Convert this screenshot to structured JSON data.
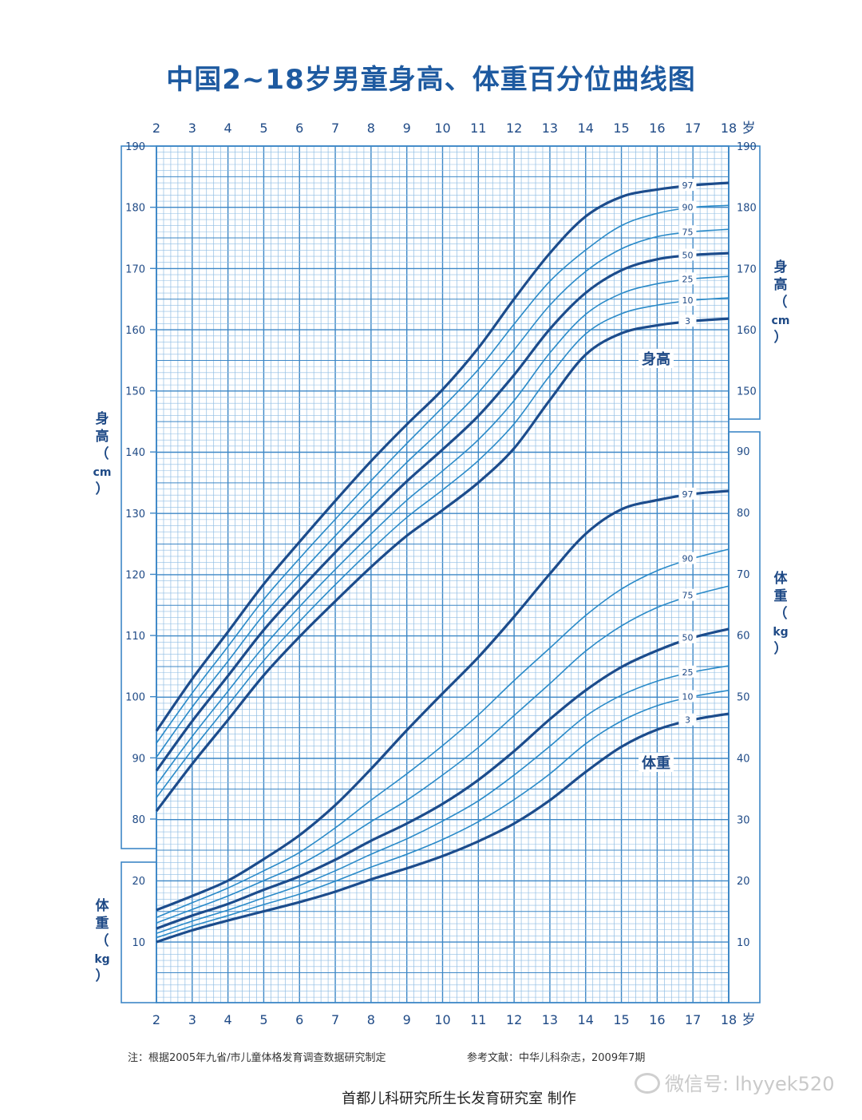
{
  "title": "中国2~18岁男童身高、体重百分位曲线图",
  "footer": {
    "note": "注：根据2005年九省/市儿童体格发育调查数据研究制定",
    "reference": "参考文献：中华儿科杂志，2009年7期",
    "maker": "首都儿科研究所生长发育研究室  制作",
    "watermark": "微信号: lhyyek520"
  },
  "colors": {
    "grid": "#3d87c6",
    "grid_minor": "#8fbde3",
    "heavy_curve": "#1c4c8c",
    "light_curve": "#2a8ac8",
    "text": "#1f4a86"
  },
  "chart_data": {
    "type": "line",
    "x_ticks": [
      2,
      3,
      4,
      5,
      6,
      7,
      8,
      9,
      10,
      11,
      12,
      13,
      14,
      15,
      16,
      17,
      18
    ],
    "x_unit": "岁",
    "xlim": [
      2,
      18
    ],
    "grid": true,
    "height": {
      "label": "身高",
      "axis_label_chars": [
        "身",
        "高",
        "（",
        "cm",
        "）"
      ],
      "ylim": [
        75,
        190
      ],
      "ticks": [
        80,
        90,
        100,
        110,
        120,
        130,
        140,
        150,
        160,
        170,
        180,
        190
      ],
      "right_ticks": [
        150,
        160,
        170,
        180,
        190
      ],
      "x": [
        2,
        3,
        4,
        5,
        6,
        7,
        8,
        9,
        10,
        11,
        12,
        13,
        14,
        15,
        16,
        17,
        18
      ],
      "series": [
        {
          "name": "3",
          "values": [
            81.3,
            89.0,
            96.2,
            103.5,
            109.8,
            115.6,
            121.2,
            126.3,
            130.5,
            135.0,
            140.6,
            148.5,
            155.9,
            159.4,
            160.7,
            161.4,
            161.8
          ]
        },
        {
          "name": "10",
          "values": [
            83.5,
            91.3,
            98.6,
            105.9,
            112.3,
            118.3,
            124.0,
            129.3,
            133.8,
            138.6,
            144.6,
            152.5,
            159.3,
            162.6,
            164.0,
            164.8,
            165.2
          ]
        },
        {
          "name": "25",
          "values": [
            85.6,
            93.5,
            100.9,
            108.2,
            114.7,
            120.8,
            126.6,
            132.1,
            136.9,
            142.0,
            148.4,
            156.2,
            162.5,
            165.9,
            167.5,
            168.3,
            168.7
          ]
        },
        {
          "name": "50",
          "values": [
            87.9,
            96.0,
            103.4,
            110.9,
            117.4,
            123.6,
            129.5,
            135.2,
            140.4,
            145.9,
            152.6,
            160.1,
            166.0,
            169.7,
            171.5,
            172.2,
            172.5
          ]
        },
        {
          "name": "75",
          "values": [
            90.1,
            98.3,
            105.8,
            113.4,
            120.0,
            126.3,
            132.4,
            138.3,
            143.8,
            149.7,
            156.7,
            164.0,
            169.5,
            173.2,
            175.2,
            176.0,
            176.4
          ]
        },
        {
          "name": "90",
          "values": [
            92.4,
            100.6,
            108.2,
            115.9,
            122.6,
            129.0,
            135.3,
            141.4,
            147.3,
            153.5,
            160.9,
            167.9,
            173.0,
            177.0,
            179.0,
            180.0,
            180.3
          ]
        },
        {
          "name": "97",
          "values": [
            94.4,
            102.9,
            110.6,
            118.4,
            125.3,
            132.0,
            138.5,
            144.5,
            150.2,
            157.0,
            165.0,
            172.5,
            178.5,
            181.7,
            182.9,
            183.6,
            184.0
          ]
        }
      ]
    },
    "weight": {
      "label": "体重",
      "axis_label_chars": [
        "体",
        "重",
        "（",
        "kg",
        "）"
      ],
      "ylim": [
        5,
        95
      ],
      "left_ticks": [
        10,
        20
      ],
      "right_ticks": [
        10,
        20,
        30,
        40,
        50,
        60,
        70,
        80,
        90
      ],
      "x": [
        2,
        3,
        4,
        5,
        6,
        7,
        8,
        9,
        10,
        11,
        12,
        13,
        14,
        15,
        16,
        17,
        18
      ],
      "series": [
        {
          "name": "3",
          "values": [
            10.0,
            11.9,
            13.5,
            15.0,
            16.5,
            18.2,
            20.2,
            22.0,
            24.0,
            26.4,
            29.3,
            33.1,
            37.7,
            41.8,
            44.6,
            46.2,
            47.2
          ]
        },
        {
          "name": "10",
          "values": [
            10.7,
            12.6,
            14.3,
            16.1,
            17.8,
            19.9,
            22.2,
            24.3,
            26.7,
            29.6,
            33.2,
            37.4,
            42.3,
            46.0,
            48.5,
            50.0,
            51.0
          ]
        },
        {
          "name": "25",
          "values": [
            11.4,
            13.4,
            15.2,
            17.2,
            19.2,
            21.6,
            24.3,
            26.8,
            29.7,
            33.0,
            37.2,
            41.9,
            46.8,
            50.2,
            52.5,
            54.0,
            55.0
          ]
        },
        {
          "name": "50",
          "values": [
            12.2,
            14.3,
            16.2,
            18.5,
            20.7,
            23.4,
            26.5,
            29.3,
            32.5,
            36.4,
            41.1,
            46.3,
            51.0,
            54.8,
            57.5,
            59.6,
            61.0
          ]
        },
        {
          "name": "75",
          "values": [
            13.1,
            15.3,
            17.5,
            20.0,
            22.6,
            25.9,
            29.6,
            33.1,
            37.2,
            41.7,
            46.9,
            52.1,
            57.4,
            61.5,
            64.5,
            66.5,
            68.0
          ]
        },
        {
          "name": "90",
          "values": [
            14.0,
            16.4,
            18.8,
            21.6,
            24.6,
            28.6,
            33.1,
            37.4,
            42.0,
            47.0,
            52.6,
            57.9,
            63.2,
            67.5,
            70.5,
            72.5,
            74.0
          ]
        },
        {
          "name": "97",
          "values": [
            15.2,
            17.5,
            20.0,
            23.5,
            27.4,
            32.3,
            38.2,
            44.5,
            50.5,
            56.4,
            63.0,
            70.0,
            76.5,
            80.5,
            82.0,
            83.0,
            83.5
          ]
        }
      ]
    }
  }
}
